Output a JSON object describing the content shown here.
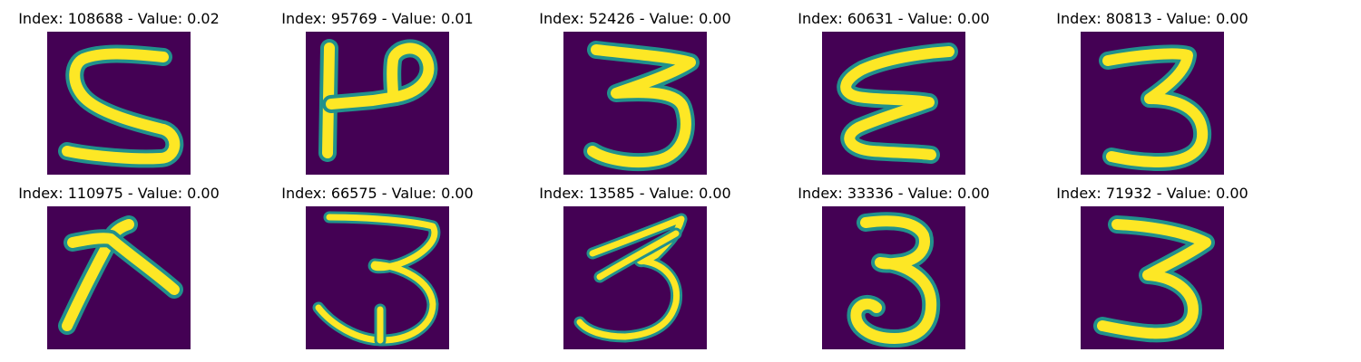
{
  "panels": [
    {
      "title": "Index: 108688 - Value: 0.02",
      "glyph": "digit-5-icon"
    },
    {
      "title": "Index: 95769 - Value: 0.01",
      "glyph": "digit-h-like-icon"
    },
    {
      "title": "Index: 52426 - Value: 0.00",
      "glyph": "digit-3-icon"
    },
    {
      "title": "Index: 60631 - Value: 0.00",
      "glyph": "digit-3-mirrored-icon"
    },
    {
      "title": "Index: 80813 - Value: 0.00",
      "glyph": "digit-3-icon"
    },
    {
      "title": "Index: 110975 - Value: 0.00",
      "glyph": "digit-k-like-icon"
    },
    {
      "title": "Index: 66575 - Value: 0.00",
      "glyph": "digit-3-icon"
    },
    {
      "title": "Index: 13585 - Value: 0.00",
      "glyph": "digit-3-icon"
    },
    {
      "title": "Index: 33336 - Value: 0.00",
      "glyph": "digit-3-icon"
    },
    {
      "title": "Index: 71932 - Value: 0.00",
      "glyph": "digit-3-icon"
    }
  ],
  "colors": {
    "background": "#ffffff",
    "tile_background": "#440154",
    "stroke_edge": "#21918c",
    "stroke_core": "#fde725",
    "title_text": "#000000"
  }
}
